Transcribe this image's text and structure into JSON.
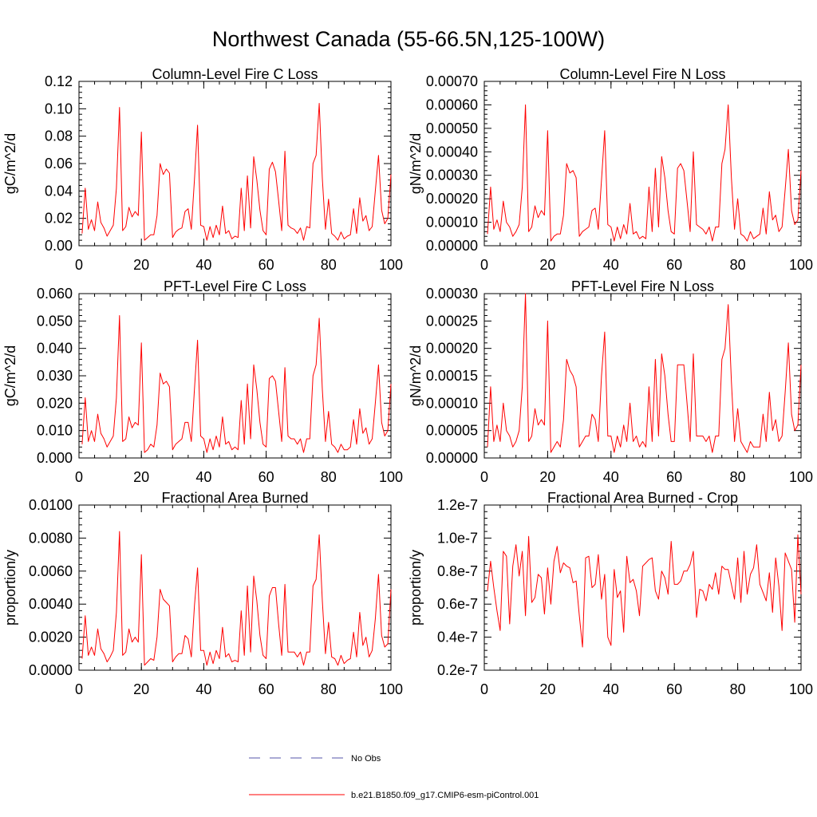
{
  "page": {
    "title": "Northwest Canada (55-66.5N,125-100W)"
  },
  "colors": {
    "series": "#ff0000",
    "obs": "#5555aa",
    "axis": "#000000"
  },
  "legend": {
    "items": [
      {
        "label": "No Obs",
        "style": "dashed",
        "color": "#5555aa"
      },
      {
        "label": "b.e21.B1850.f09_g17.CMIP6-esm-piControl.001",
        "style": "solid",
        "color": "#ff0000"
      }
    ]
  },
  "chart_data": [
    {
      "type": "line",
      "title": "Column-Level Fire C Loss",
      "ylabel": "gC/m^2/d",
      "xlim": [
        0,
        100
      ],
      "ylim": [
        0,
        0.12
      ],
      "xticks": [
        0,
        20,
        40,
        60,
        80,
        100
      ],
      "yticks": [
        0,
        0.02,
        0.04,
        0.06,
        0.08,
        0.1,
        0.12
      ],
      "ytick_labels": [
        "0.00",
        "0.02",
        "0.04",
        "0.06",
        "0.08",
        "0.10",
        "0.12"
      ],
      "x_start": 1,
      "values": [
        0.009,
        0.042,
        0.012,
        0.019,
        0.011,
        0.032,
        0.017,
        0.013,
        0.007,
        0.011,
        0.015,
        0.042,
        0.101,
        0.011,
        0.014,
        0.028,
        0.021,
        0.025,
        0.022,
        0.083,
        0.004,
        0.006,
        0.008,
        0.008,
        0.022,
        0.06,
        0.052,
        0.056,
        0.053,
        0.006,
        0.01,
        0.012,
        0.013,
        0.025,
        0.027,
        0.012,
        0.048,
        0.088,
        0.015,
        0.014,
        0.004,
        0.014,
        0.006,
        0.015,
        0.008,
        0.029,
        0.009,
        0.011,
        0.005,
        0.007,
        0.006,
        0.042,
        0.011,
        0.051,
        0.013,
        0.065,
        0.048,
        0.026,
        0.011,
        0.008,
        0.056,
        0.061,
        0.054,
        0.033,
        0.011,
        0.069,
        0.015,
        0.013,
        0.012,
        0.009,
        0.013,
        0.004,
        0.014,
        0.013,
        0.06,
        0.066,
        0.104,
        0.049,
        0.012,
        0.034,
        0.009,
        0.007,
        0.004,
        0.01,
        0.005,
        0.007,
        0.008,
        0.027,
        0.009,
        0.035,
        0.018,
        0.022,
        0.011,
        0.014,
        0.04,
        0.066,
        0.026,
        0.016,
        0.02,
        0.052
      ]
    },
    {
      "type": "line",
      "title": "Column-Level Fire N Loss",
      "ylabel": "gN/m^2/d",
      "xlim": [
        0,
        100
      ],
      "ylim": [
        0,
        0.0007
      ],
      "xticks": [
        0,
        20,
        40,
        60,
        80,
        100
      ],
      "yticks": [
        0,
        0.0001,
        0.0002,
        0.0003,
        0.0004,
        0.0005,
        0.0006,
        0.0007
      ],
      "ytick_labels": [
        "0.00000",
        "0.00010",
        "0.00020",
        "0.00030",
        "0.00040",
        "0.00050",
        "0.00060",
        "0.00070"
      ],
      "x_start": 1,
      "values": [
        5e-05,
        0.00025,
        7e-05,
        0.00011,
        6e-05,
        0.00019,
        0.0001,
        8e-05,
        4e-05,
        6e-05,
        9e-05,
        0.00025,
        0.0006,
        6e-05,
        8e-05,
        0.00017,
        0.00012,
        0.00015,
        0.00013,
        0.00049,
        2e-05,
        4e-05,
        5e-05,
        5e-05,
        0.00013,
        0.00035,
        0.00031,
        0.00032,
        0.00029,
        4e-05,
        6e-05,
        7e-05,
        8e-05,
        0.00015,
        0.00016,
        7e-05,
        0.00028,
        0.00049,
        9e-05,
        8e-05,
        2e-05,
        8e-05,
        3e-05,
        9e-05,
        5e-05,
        0.00018,
        5e-05,
        6e-05,
        3e-05,
        4e-05,
        3e-05,
        0.00025,
        6e-05,
        0.00033,
        8e-05,
        0.00038,
        0.00029,
        0.00015,
        6e-05,
        5e-05,
        0.00033,
        0.00035,
        0.00032,
        0.00019,
        6e-05,
        0.0004,
        9e-05,
        8e-05,
        7e-05,
        5e-05,
        8e-05,
        2e-05,
        8e-05,
        8e-05,
        0.00035,
        0.00041,
        0.0006,
        0.00029,
        7e-05,
        0.0002,
        5e-05,
        4e-05,
        2e-05,
        6e-05,
        3e-05,
        4e-05,
        5e-05,
        0.00016,
        5e-05,
        0.00023,
        0.00011,
        0.00013,
        6e-05,
        8e-05,
        0.00024,
        0.00041,
        0.00015,
        9e-05,
        0.00011,
        0.00032
      ]
    },
    {
      "type": "line",
      "title": "PFT-Level Fire C Loss",
      "ylabel": "gC/m^2/d",
      "xlim": [
        0,
        100
      ],
      "ylim": [
        0,
        0.06
      ],
      "xticks": [
        0,
        20,
        40,
        60,
        80,
        100
      ],
      "yticks": [
        0,
        0.01,
        0.02,
        0.03,
        0.04,
        0.05,
        0.06
      ],
      "ytick_labels": [
        "0.000",
        "0.010",
        "0.020",
        "0.030",
        "0.040",
        "0.050",
        "0.060"
      ],
      "x_start": 1,
      "values": [
        0.005,
        0.022,
        0.006,
        0.01,
        0.006,
        0.016,
        0.009,
        0.007,
        0.004,
        0.006,
        0.008,
        0.022,
        0.052,
        0.006,
        0.007,
        0.015,
        0.011,
        0.013,
        0.012,
        0.042,
        0.002,
        0.003,
        0.005,
        0.004,
        0.012,
        0.031,
        0.027,
        0.028,
        0.026,
        0.003,
        0.005,
        0.006,
        0.007,
        0.013,
        0.013,
        0.006,
        0.025,
        0.043,
        0.008,
        0.007,
        0.002,
        0.007,
        0.003,
        0.008,
        0.004,
        0.015,
        0.005,
        0.006,
        0.003,
        0.004,
        0.003,
        0.021,
        0.005,
        0.027,
        0.007,
        0.034,
        0.025,
        0.013,
        0.005,
        0.004,
        0.029,
        0.03,
        0.028,
        0.017,
        0.006,
        0.033,
        0.008,
        0.007,
        0.007,
        0.005,
        0.007,
        0.002,
        0.007,
        0.007,
        0.03,
        0.034,
        0.051,
        0.025,
        0.006,
        0.017,
        0.005,
        0.004,
        0.002,
        0.005,
        0.003,
        0.003,
        0.004,
        0.014,
        0.005,
        0.018,
        0.009,
        0.011,
        0.005,
        0.007,
        0.02,
        0.034,
        0.013,
        0.008,
        0.01,
        0.027
      ]
    },
    {
      "type": "line",
      "title": "PFT-Level Fire N Loss",
      "ylabel": "gN/m^2/d",
      "xlim": [
        0,
        100
      ],
      "ylim": [
        0,
        0.0003
      ],
      "xticks": [
        0,
        20,
        40,
        60,
        80,
        100
      ],
      "yticks": [
        0,
        5e-05,
        0.0001,
        0.00015,
        0.0002,
        0.00025,
        0.0003
      ],
      "ytick_labels": [
        "0.00000",
        "0.00005",
        "0.00010",
        "0.00015",
        "0.00020",
        "0.00025",
        "0.00030"
      ],
      "x_start": 1,
      "values": [
        2e-05,
        0.00013,
        3e-05,
        6e-05,
        3e-05,
        0.0001,
        5e-05,
        4e-05,
        2e-05,
        3e-05,
        5e-05,
        0.00013,
        0.0003,
        3e-05,
        4e-05,
        9e-05,
        6e-05,
        7e-05,
        6e-05,
        0.00025,
        1e-05,
        2e-05,
        3e-05,
        2e-05,
        7e-05,
        0.00018,
        0.00016,
        0.00015,
        0.00013,
        2e-05,
        3e-05,
        4e-05,
        4e-05,
        8e-05,
        7e-05,
        3e-05,
        0.00015,
        0.00023,
        4e-05,
        4e-05,
        1e-05,
        4e-05,
        2e-05,
        6e-05,
        3e-05,
        0.0001,
        3e-05,
        4e-05,
        2e-05,
        3e-05,
        2e-05,
        0.00013,
        3e-05,
        0.00018,
        4e-05,
        0.00019,
        0.00015,
        8e-05,
        3e-05,
        3e-05,
        0.00017,
        0.00017,
        0.00017,
        0.0001,
        3e-05,
        0.00019,
        4e-05,
        4e-05,
        4e-05,
        3e-05,
        4e-05,
        1e-05,
        4e-05,
        4e-05,
        0.00018,
        0.0002,
        0.00028,
        0.00014,
        3e-05,
        9e-05,
        3e-05,
        2e-05,
        1e-05,
        3e-05,
        2e-05,
        2e-05,
        2e-05,
        8e-05,
        3e-05,
        0.00012,
        5e-05,
        7e-05,
        3e-05,
        4e-05,
        0.00012,
        0.00021,
        8e-05,
        5e-05,
        6e-05,
        0.00017
      ]
    },
    {
      "type": "line",
      "title": "Fractional Area Burned",
      "ylabel": "proportion/y",
      "xlim": [
        0,
        100
      ],
      "ylim": [
        0,
        0.01
      ],
      "xticks": [
        0,
        20,
        40,
        60,
        80,
        100
      ],
      "yticks": [
        0,
        0.002,
        0.004,
        0.006,
        0.008,
        0.01
      ],
      "ytick_labels": [
        "0.0000",
        "0.0020",
        "0.0040",
        "0.0060",
        "0.0080",
        "0.0100"
      ],
      "x_start": 1,
      "values": [
        0.0007,
        0.0033,
        0.0009,
        0.0014,
        0.0009,
        0.0025,
        0.0013,
        0.001,
        0.0005,
        0.0008,
        0.0012,
        0.0035,
        0.0084,
        0.0009,
        0.0011,
        0.0025,
        0.0017,
        0.002,
        0.0017,
        0.007,
        0.0003,
        0.0005,
        0.0007,
        0.0006,
        0.002,
        0.0049,
        0.0043,
        0.0041,
        0.0039,
        0.0005,
        0.0008,
        0.001,
        0.001,
        0.0021,
        0.0019,
        0.0008,
        0.0039,
        0.0062,
        0.0012,
        0.0012,
        0.0003,
        0.0011,
        0.0004,
        0.0012,
        0.0007,
        0.0026,
        0.0008,
        0.001,
        0.0005,
        0.0006,
        0.0005,
        0.0036,
        0.0009,
        0.0051,
        0.0011,
        0.0057,
        0.0042,
        0.0021,
        0.0009,
        0.0007,
        0.0045,
        0.005,
        0.005,
        0.0028,
        0.0009,
        0.0052,
        0.0011,
        0.0011,
        0.0011,
        0.0008,
        0.0011,
        0.0003,
        0.0011,
        0.0011,
        0.0051,
        0.0055,
        0.0082,
        0.0042,
        0.001,
        0.0029,
        0.0008,
        0.0007,
        0.0003,
        0.0009,
        0.0004,
        0.0006,
        0.0007,
        0.0023,
        0.0008,
        0.0035,
        0.0015,
        0.002,
        0.0008,
        0.0012,
        0.0031,
        0.0058,
        0.0021,
        0.0014,
        0.0016,
        0.0049
      ]
    },
    {
      "type": "line",
      "title": "Fractional Area Burned - Crop",
      "ylabel": "proportion/y",
      "xlim": [
        0,
        100
      ],
      "ylim": [
        2e-08,
        1.2e-07
      ],
      "xticks": [
        0,
        20,
        40,
        60,
        80,
        100
      ],
      "yticks": [
        2e-08,
        4e-08,
        6e-08,
        8e-08,
        1e-07,
        1.2e-07
      ],
      "ytick_labels": [
        "0.2e-7",
        "0.4e-7",
        "0.6e-7",
        "0.8e-7",
        "1.0e-7",
        "1.2e-7"
      ],
      "x_start": 1,
      "values": [
        6.8e-08,
        8.6e-08,
        7e-08,
        5.6e-08,
        4.4e-08,
        9.2e-08,
        8.9e-08,
        4.8e-08,
        8.3e-08,
        9.6e-08,
        7.7e-08,
        9.2e-08,
        5.3e-08,
        1.01e-07,
        6.1e-08,
        6.4e-08,
        7.8e-08,
        7.6e-08,
        5.4e-08,
        8.2e-08,
        6e-08,
        8.6e-08,
        9.5e-08,
        7.9e-08,
        8.5e-08,
        8.3e-08,
        8.2e-08,
        7.3e-08,
        7.4e-08,
        5.3e-08,
        3.4e-08,
        8.8e-08,
        8.9e-08,
        7e-08,
        7.2e-08,
        9e-08,
        6.3e-08,
        7.8e-08,
        4e-08,
        3.5e-08,
        8.1e-08,
        6.4e-08,
        6.8e-08,
        4.3e-08,
        8.9e-08,
        7.3e-08,
        7.5e-08,
        6.8e-08,
        5.3e-08,
        8.3e-08,
        8.5e-08,
        8.7e-08,
        8.8e-08,
        6.8e-08,
        6.3e-08,
        8e-08,
        7.6e-08,
        6.6e-08,
        9.8e-08,
        7.2e-08,
        7.2e-08,
        7.4e-08,
        8e-08,
        8e-08,
        8.4e-08,
        9.2e-08,
        5.2e-08,
        6.9e-08,
        6.8e-08,
        6.2e-08,
        7.2e-08,
        6.9e-08,
        7.9e-08,
        6.6e-08,
        8.3e-08,
        8.1e-08,
        8.1e-08,
        7.2e-08,
        6.3e-08,
        8.8e-08,
        6.1e-08,
        9.2e-08,
        6.6e-08,
        7.8e-08,
        8.2e-08,
        9.6e-08,
        7.2e-08,
        6.7e-08,
        6.2e-08,
        7.9e-08,
        5.5e-08,
        8.8e-08,
        7.1e-08,
        4.4e-08,
        9.1e-08,
        8.6e-08,
        8.1e-08,
        4.9e-08,
        1.02e-07,
        6.6e-08
      ]
    }
  ]
}
